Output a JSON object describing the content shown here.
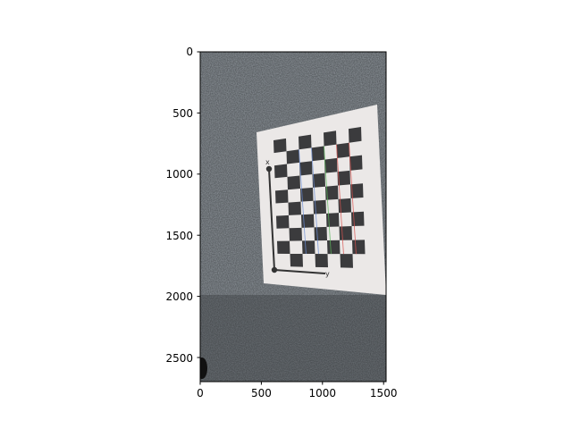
{
  "figure": {
    "x_ticks": [
      "0",
      "500",
      "1000",
      "1500"
    ],
    "y_ticks": [
      "0",
      "500",
      "1000",
      "1500",
      "2000",
      "2500"
    ]
  },
  "image": {
    "description_icon": "checkerboard-calibration-photo",
    "colors": {
      "background_dark": "#565b60",
      "paper": "#ece9e8",
      "square": "#3b3b3d",
      "line_red": "#d9534f",
      "line_green": "#5cb85c",
      "line_blue": "#6c8ed6"
    },
    "board_label_top": "x",
    "board_label_right": "y"
  }
}
